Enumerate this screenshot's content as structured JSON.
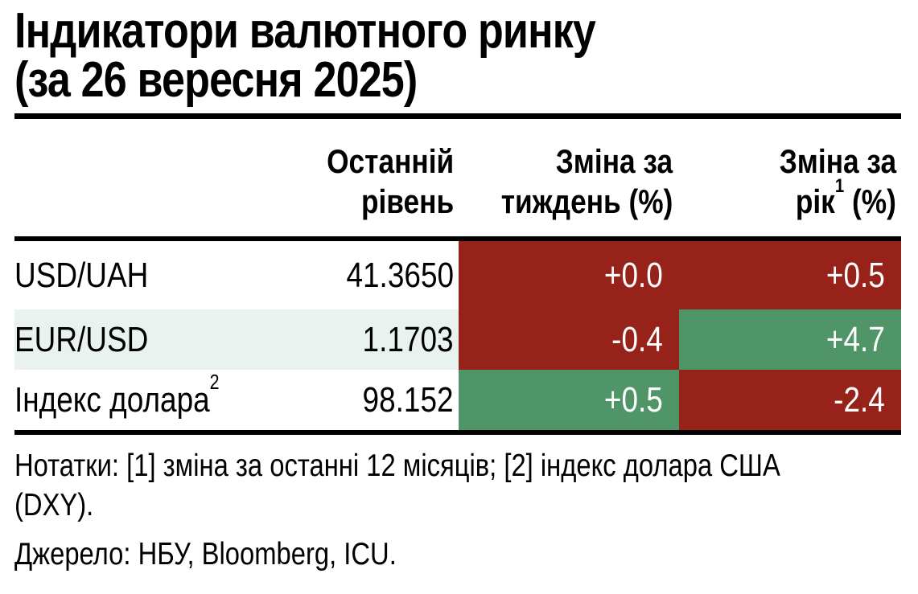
{
  "title": {
    "line1": "Індикатори валютного ринку",
    "line2": "(за 26 вересня 2025)"
  },
  "table": {
    "headers": {
      "level": {
        "line1": "Останній",
        "line2": "рівень"
      },
      "week": {
        "line1": "Зміна за",
        "line2": "тиждень (%)"
      },
      "year": {
        "line1": "Зміна за",
        "l2_pre": "рік",
        "l2_sup": "1",
        "l2_post": " (%)"
      }
    },
    "rows": [
      {
        "label": "USD/UAH",
        "label_sup": "",
        "level": "41.3650",
        "week": {
          "value": "+0.0",
          "color": "red"
        },
        "year": {
          "value": "+0.5",
          "color": "red"
        }
      },
      {
        "label": "EUR/USD",
        "label_sup": "",
        "level": "1.1703",
        "week": {
          "value": "-0.4",
          "color": "red"
        },
        "year": {
          "value": "+4.7",
          "color": "green"
        }
      },
      {
        "label": "Індекс долара",
        "label_sup": "2",
        "level": "98.152",
        "week": {
          "value": "+0.5",
          "color": "green"
        },
        "year": {
          "value": "-2.4",
          "color": "red"
        }
      }
    ]
  },
  "notes": "Нотатки: [1] зміна за останні 12 місяців; [2] індекс долара США (DXY).",
  "source": "Джерело: НБУ, Bloomberg, ICU.",
  "colors": {
    "cell_red": "#97221a",
    "cell_green": "#4f9567",
    "row_stripe": "#e9f2ef",
    "rule_black": "#000000",
    "cell_text": "#ffffff"
  },
  "chart_data": {
    "type": "table",
    "title": "Індикатори валютного ринку (за 26 вересня 2025)",
    "columns": [
      "",
      "Останній рівень",
      "Зміна за тиждень (%)",
      "Зміна за рік¹ (%)"
    ],
    "rows": [
      {
        "indicator": "USD/UAH",
        "last_level": 41.365,
        "week_change_pct": 0.0,
        "year_change_pct": 0.5,
        "week_cell_color": "red",
        "year_cell_color": "red"
      },
      {
        "indicator": "EUR/USD",
        "last_level": 1.1703,
        "week_change_pct": -0.4,
        "year_change_pct": 4.7,
        "week_cell_color": "red",
        "year_cell_color": "green"
      },
      {
        "indicator": "Індекс долара²",
        "last_level": 98.152,
        "week_change_pct": 0.5,
        "year_change_pct": -2.4,
        "week_cell_color": "green",
        "year_cell_color": "red"
      }
    ],
    "notes": "Нотатки: [1] зміна за останні 12 місяців; [2] індекс долара США (DXY).",
    "source": "Джерело: НБУ, Bloomberg, ICU."
  }
}
